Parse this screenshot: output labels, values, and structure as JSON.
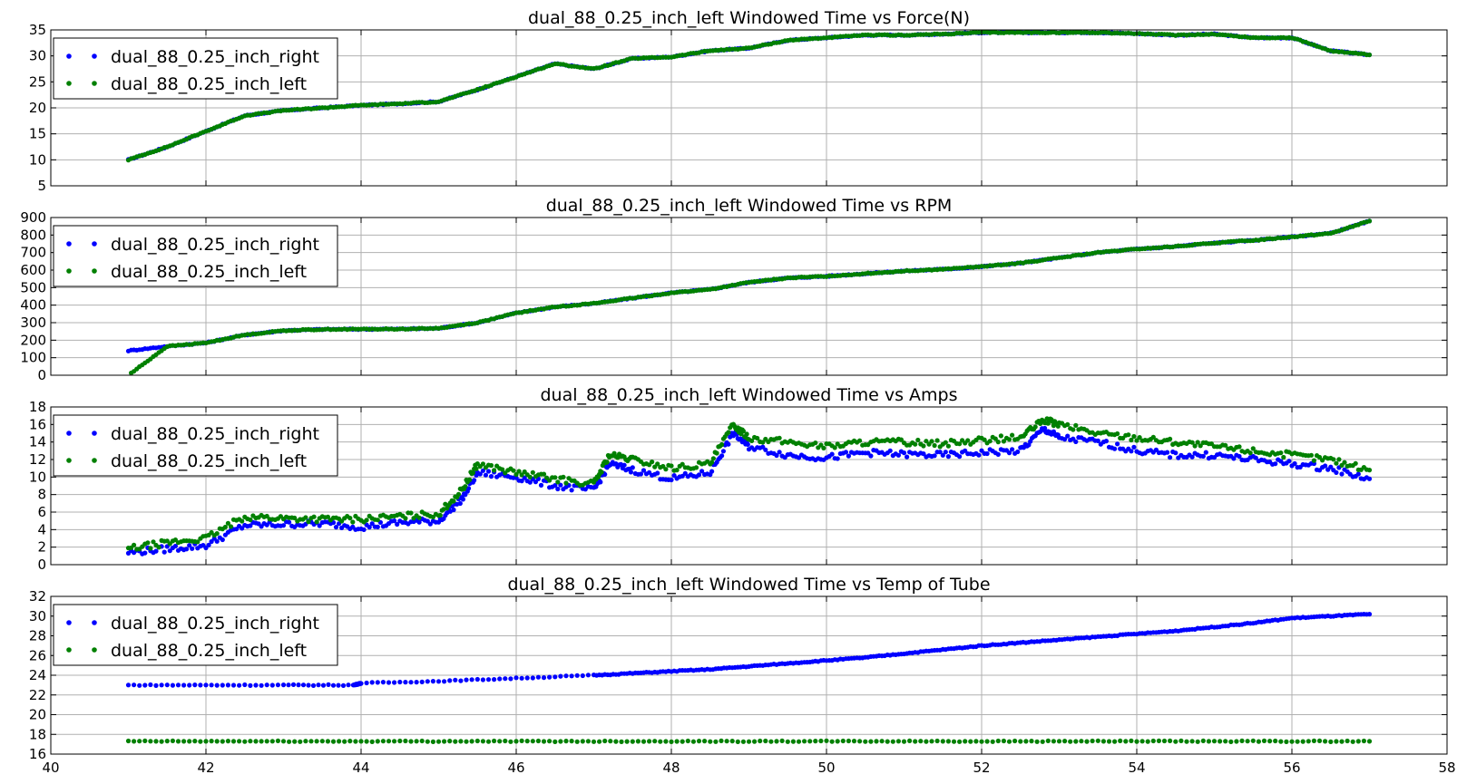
{
  "chart_data": [
    {
      "type": "scatter",
      "title": "dual_88_0.25_inch_left Windowed Time vs Force(N)",
      "xlim": [
        40,
        58
      ],
      "ylim": [
        5,
        35
      ],
      "yticks": [
        5,
        10,
        15,
        20,
        25,
        30,
        35
      ],
      "grid": true,
      "legend_position": "upper-left",
      "x_tick_labels_visible": false,
      "series": [
        {
          "name": "dual_88_0.25_inch_right",
          "color": "#0000ff",
          "x": [
            41.0,
            41.5,
            42.0,
            42.5,
            43.0,
            43.5,
            44.0,
            44.5,
            45.0,
            45.5,
            46.0,
            46.5,
            47.0,
            47.5,
            48.0,
            48.5,
            49.0,
            49.5,
            50.0,
            50.5,
            51.0,
            51.5,
            52.0,
            52.5,
            53.0,
            53.5,
            54.0,
            54.5,
            55.0,
            55.5,
            56.0,
            56.5,
            57.0
          ],
          "y": [
            10.0,
            12.5,
            15.5,
            18.5,
            19.5,
            20.0,
            20.5,
            20.8,
            21.2,
            23.5,
            26.0,
            28.5,
            27.5,
            29.5,
            29.8,
            31.0,
            31.5,
            33.0,
            33.5,
            34.0,
            34.0,
            34.2,
            34.5,
            34.5,
            34.5,
            34.5,
            34.3,
            34.0,
            34.2,
            33.5,
            33.5,
            31.0,
            30.2
          ]
        },
        {
          "name": "dual_88_0.25_inch_left",
          "color": "#008000",
          "x": [
            41.0,
            41.5,
            42.0,
            42.5,
            43.0,
            43.5,
            44.0,
            44.5,
            45.0,
            45.5,
            46.0,
            46.5,
            47.0,
            47.5,
            48.0,
            48.5,
            49.0,
            49.5,
            50.0,
            50.5,
            51.0,
            51.5,
            52.0,
            52.5,
            53.0,
            53.5,
            54.0,
            54.5,
            55.0,
            55.5,
            56.0,
            56.5,
            57.0
          ],
          "y": [
            10.0,
            12.5,
            15.5,
            18.5,
            19.5,
            20.0,
            20.5,
            20.8,
            21.2,
            23.5,
            26.0,
            28.5,
            27.5,
            29.5,
            29.8,
            31.0,
            31.5,
            33.0,
            33.5,
            34.0,
            34.0,
            34.2,
            34.5,
            34.5,
            34.5,
            34.5,
            34.3,
            34.0,
            34.2,
            33.5,
            33.5,
            31.0,
            30.2
          ]
        }
      ]
    },
    {
      "type": "scatter",
      "title": "dual_88_0.25_inch_left Windowed Time vs RPM",
      "xlim": [
        40,
        58
      ],
      "ylim": [
        0,
        900
      ],
      "yticks": [
        0,
        100,
        200,
        300,
        400,
        500,
        600,
        700,
        800,
        900
      ],
      "grid": true,
      "legend_position": "upper-left",
      "x_tick_labels_visible": false,
      "series": [
        {
          "name": "dual_88_0.25_inch_right",
          "color": "#0000ff",
          "x": [
            41.0,
            41.5,
            42.0,
            42.5,
            43.0,
            43.5,
            44.0,
            44.5,
            45.0,
            45.5,
            46.0,
            46.5,
            47.0,
            47.5,
            48.0,
            48.5,
            49.0,
            49.5,
            50.0,
            50.5,
            51.0,
            51.5,
            52.0,
            52.5,
            53.0,
            53.5,
            54.0,
            54.5,
            55.0,
            55.5,
            56.0,
            56.5,
            57.0
          ],
          "y": [
            140,
            165,
            185,
            230,
            255,
            262,
            263,
            264,
            268,
            300,
            355,
            390,
            410,
            440,
            470,
            490,
            530,
            555,
            565,
            580,
            595,
            605,
            620,
            640,
            670,
            700,
            720,
            735,
            755,
            770,
            790,
            810,
            880
          ]
        },
        {
          "name": "dual_88_0.25_inch_left",
          "color": "#008000",
          "x": [
            41.0,
            41.5,
            42.0,
            42.5,
            43.0,
            43.5,
            44.0,
            44.5,
            45.0,
            45.5,
            46.0,
            46.5,
            47.0,
            47.5,
            48.0,
            48.5,
            49.0,
            49.5,
            50.0,
            50.5,
            51.0,
            51.5,
            52.0,
            52.5,
            53.0,
            53.5,
            54.0,
            54.5,
            55.0,
            55.5,
            56.0,
            56.5,
            57.0
          ],
          "y": [
            0,
            165,
            185,
            230,
            255,
            262,
            263,
            264,
            268,
            300,
            355,
            390,
            410,
            440,
            470,
            490,
            530,
            555,
            565,
            580,
            595,
            605,
            620,
            640,
            670,
            700,
            720,
            735,
            755,
            770,
            790,
            810,
            880
          ]
        }
      ]
    },
    {
      "type": "scatter",
      "title": "dual_88_0.25_inch_left Windowed Time vs Amps",
      "xlim": [
        40,
        58
      ],
      "ylim": [
        0,
        18
      ],
      "yticks": [
        0,
        2,
        4,
        6,
        8,
        10,
        12,
        14,
        16,
        18
      ],
      "grid": true,
      "legend_position": "upper-left",
      "x_tick_labels_visible": false,
      "series": [
        {
          "name": "dual_88_0.25_inch_right",
          "color": "#0000ff",
          "x": [
            41.0,
            41.5,
            42.0,
            42.5,
            43.0,
            43.5,
            44.0,
            44.5,
            45.0,
            45.3,
            45.5,
            46.0,
            46.5,
            47.0,
            47.2,
            47.5,
            48.0,
            48.5,
            48.8,
            49.0,
            49.5,
            50.0,
            50.5,
            51.0,
            51.5,
            52.0,
            52.5,
            52.8,
            53.0,
            53.5,
            54.0,
            54.5,
            55.0,
            55.5,
            56.0,
            56.5,
            57.0
          ],
          "y": [
            1.4,
            1.8,
            2.2,
            4.5,
            4.6,
            4.7,
            4.3,
            4.8,
            5.0,
            7.5,
            10.5,
            10.0,
            9.0,
            8.5,
            11.5,
            10.8,
            9.8,
            10.5,
            15.0,
            13.5,
            12.5,
            12.2,
            12.8,
            12.6,
            12.5,
            12.8,
            13.0,
            15.5,
            14.5,
            14.0,
            13.0,
            12.5,
            12.5,
            12.0,
            11.5,
            11.0,
            9.8
          ]
        },
        {
          "name": "dual_88_0.25_inch_left",
          "color": "#008000",
          "x": [
            41.0,
            41.5,
            42.0,
            42.5,
            43.0,
            43.5,
            44.0,
            44.5,
            45.0,
            45.3,
            45.5,
            46.0,
            46.5,
            47.0,
            47.2,
            47.5,
            48.0,
            48.5,
            48.8,
            49.0,
            49.5,
            50.0,
            50.5,
            51.0,
            51.5,
            52.0,
            52.5,
            52.8,
            53.0,
            53.5,
            54.0,
            54.5,
            55.0,
            55.5,
            56.0,
            56.5,
            57.0
          ],
          "y": [
            1.8,
            2.5,
            3.0,
            5.5,
            5.3,
            5.2,
            5.2,
            5.5,
            5.8,
            8.5,
            11.5,
            10.5,
            9.8,
            9.2,
            12.5,
            12.0,
            11.0,
            11.5,
            16.0,
            14.5,
            14.0,
            13.5,
            14.0,
            14.0,
            13.8,
            14.2,
            14.5,
            16.5,
            16.0,
            15.0,
            14.5,
            14.0,
            13.5,
            13.0,
            12.5,
            12.0,
            10.8
          ]
        }
      ]
    },
    {
      "type": "scatter",
      "title": "dual_88_0.25_inch_left Windowed Time vs Temp of Tube",
      "xlim": [
        40,
        58
      ],
      "ylim": [
        16,
        32
      ],
      "yticks": [
        16,
        18,
        20,
        22,
        24,
        26,
        28,
        30,
        32
      ],
      "xticks": [
        40,
        42,
        44,
        46,
        48,
        50,
        52,
        54,
        56,
        58
      ],
      "grid": true,
      "legend_position": "upper-left",
      "x_tick_labels_visible": true,
      "series": [
        {
          "name": "dual_88_0.25_inch_right",
          "color": "#0000ff",
          "x": [
            41.0,
            42.0,
            43.0,
            43.9,
            44.0,
            45.0,
            46.0,
            47.0,
            47.5,
            48.0,
            48.5,
            49.0,
            49.5,
            50.0,
            50.5,
            51.0,
            51.5,
            52.0,
            52.5,
            53.0,
            53.5,
            54.0,
            54.5,
            55.0,
            55.5,
            56.0,
            56.5,
            57.0
          ],
          "y": [
            23.0,
            23.0,
            23.0,
            23.0,
            23.2,
            23.4,
            23.7,
            24.0,
            24.2,
            24.4,
            24.6,
            24.9,
            25.2,
            25.5,
            25.8,
            26.2,
            26.6,
            27.0,
            27.3,
            27.6,
            27.9,
            28.2,
            28.5,
            28.9,
            29.3,
            29.8,
            30.0,
            30.2
          ]
        },
        {
          "name": "dual_88_0.25_inch_left",
          "color": "#008000",
          "x": [
            41.0,
            42.0,
            43.0,
            44.0,
            45.0,
            46.0,
            47.0,
            48.0,
            49.0,
            50.0,
            51.0,
            52.0,
            53.0,
            54.0,
            55.0,
            56.0,
            57.0
          ],
          "y": [
            17.3,
            17.3,
            17.3,
            17.3,
            17.3,
            17.3,
            17.3,
            17.3,
            17.3,
            17.3,
            17.3,
            17.3,
            17.3,
            17.3,
            17.3,
            17.3,
            17.3
          ]
        }
      ]
    }
  ]
}
